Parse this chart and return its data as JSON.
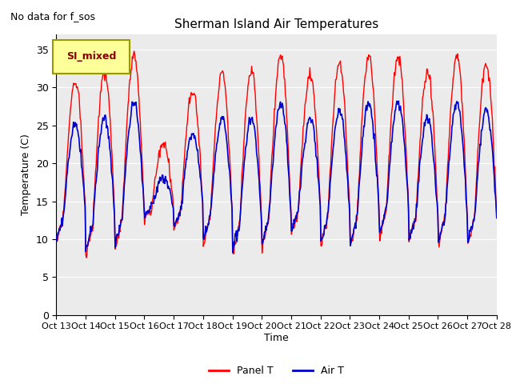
{
  "title": "Sherman Island Air Temperatures",
  "subtitle": "No data for f_sos",
  "ylabel": "Temperature (C)",
  "xlabel": "Time",
  "legend_label": "SI_mixed",
  "ylim": [
    0,
    37
  ],
  "yticks": [
    0,
    5,
    10,
    15,
    20,
    25,
    30,
    35
  ],
  "xtick_labels": [
    "Oct 13",
    "Oct 14",
    "Oct 15",
    "Oct 16",
    "Oct 17",
    "Oct 18",
    "Oct 19",
    "Oct 20",
    "Oct 21",
    "Oct 22",
    "Oct 23",
    "Oct 24",
    "Oct 25",
    "Oct 26",
    "Oct 27",
    "Oct 28"
  ],
  "xtick_positions": [
    0,
    1,
    2,
    3,
    4,
    5,
    6,
    7,
    8,
    9,
    10,
    11,
    12,
    13,
    14,
    15
  ],
  "panel_color": "#FF0000",
  "air_color": "#0000CC",
  "legend_box_color": "#FFFF99",
  "legend_box_edge": "#999900",
  "series_legend": [
    "Panel T",
    "Air T"
  ]
}
